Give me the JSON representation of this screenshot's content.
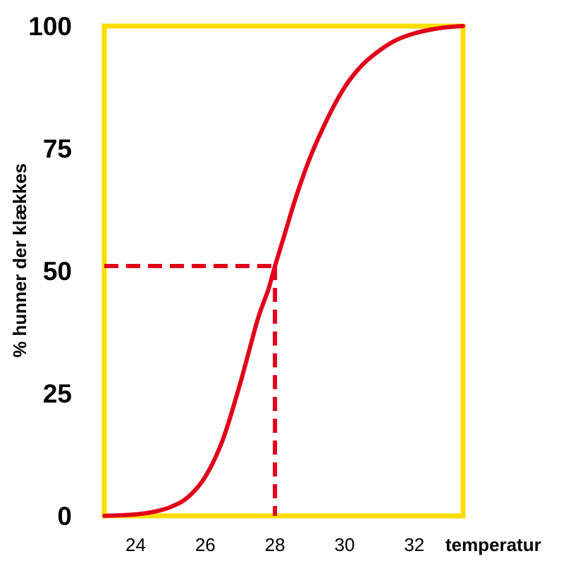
{
  "chart_data": {
    "type": "line",
    "title": "",
    "xlabel": "temperatur",
    "ylabel": "% hunner der klækkes",
    "xlim": [
      23.1,
      33.4
    ],
    "ylim": [
      0,
      100
    ],
    "x_ticks": [
      24,
      26,
      28,
      30,
      32
    ],
    "x_tick_labels": [
      "24",
      "26",
      "28",
      "30",
      "32"
    ],
    "y_ticks": [
      0,
      25,
      50,
      75,
      100
    ],
    "y_tick_labels": [
      "0",
      "25",
      "50",
      "75",
      "100"
    ],
    "grid": false,
    "legend": "none",
    "frame_color": "#FFDD00",
    "series": [
      {
        "color": "#E0001A",
        "x": [
          23.1,
          23.5,
          24.0,
          24.5,
          25.0,
          25.5,
          26.0,
          26.5,
          27.0,
          27.5,
          27.8,
          28.0,
          28.3,
          28.6,
          29.0,
          29.5,
          30.0,
          30.5,
          31.0,
          31.5,
          32.0,
          32.5,
          33.0,
          33.4
        ],
        "y": [
          0,
          0.1,
          0.3,
          0.8,
          1.8,
          3.8,
          8,
          15.5,
          27,
          40,
          46,
          51,
          58,
          65,
          73,
          81,
          87.5,
          92,
          95,
          97.2,
          98.5,
          99.3,
          99.8,
          100
        ]
      }
    ],
    "reference_lines": [
      {
        "style": "dashed",
        "color": "#E0001A",
        "x": 28.0,
        "y": 51
      }
    ]
  }
}
